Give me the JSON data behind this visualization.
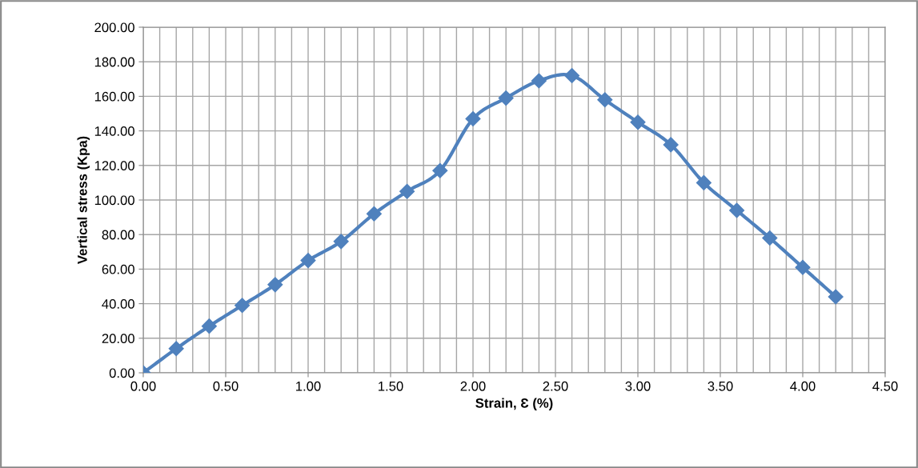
{
  "chart_data": {
    "type": "line",
    "xlabel": "Strain, Ɛ (%)",
    "ylabel": "Vertical stress (Kpa)",
    "x": [
      0,
      0.2,
      0.4,
      0.6,
      0.8,
      1.0,
      1.2,
      1.4,
      1.6,
      1.8,
      2.0,
      2.2,
      2.4,
      2.6,
      2.8,
      3.0,
      3.2,
      3.4,
      3.6,
      3.8,
      4.0,
      4.2
    ],
    "series": [
      {
        "color": "#4f81bd",
        "values": [
          0,
          14,
          27,
          39,
          51,
          65,
          76,
          92,
          105,
          117,
          147,
          159,
          169,
          172,
          158,
          145,
          132,
          110,
          94,
          78,
          61,
          44
        ]
      }
    ],
    "xlim": [
      0,
      4.5
    ],
    "xticks": [
      {
        "value": 0,
        "label": "0.00"
      },
      {
        "value": 0.5,
        "label": "0.50"
      },
      {
        "value": 1.0,
        "label": "1.00"
      },
      {
        "value": 1.5,
        "label": "1.50"
      },
      {
        "value": 2.0,
        "label": "2.00"
      },
      {
        "value": 2.5,
        "label": "2.50"
      },
      {
        "value": 3.0,
        "label": "3.00"
      },
      {
        "value": 3.5,
        "label": "3.50"
      },
      {
        "value": 4.0,
        "label": "4.00"
      },
      {
        "value": 4.5,
        "label": "4.50"
      }
    ],
    "ylim": [
      0,
      200
    ],
    "yticks": [
      {
        "value": 0,
        "label": "0.00"
      },
      {
        "value": 20,
        "label": "20.00"
      },
      {
        "value": 40,
        "label": "40.00"
      },
      {
        "value": 60,
        "label": "60.00"
      },
      {
        "value": 80,
        "label": "80.00"
      },
      {
        "value": 100,
        "label": "100.00"
      },
      {
        "value": 120,
        "label": "120.00"
      },
      {
        "value": 140,
        "label": "140.00"
      },
      {
        "value": 160,
        "label": "160.00"
      },
      {
        "value": 180,
        "label": "180.00"
      },
      {
        "value": 200,
        "label": "200.00"
      }
    ],
    "grid": true,
    "marker": "diamond",
    "line_style": "solid"
  }
}
